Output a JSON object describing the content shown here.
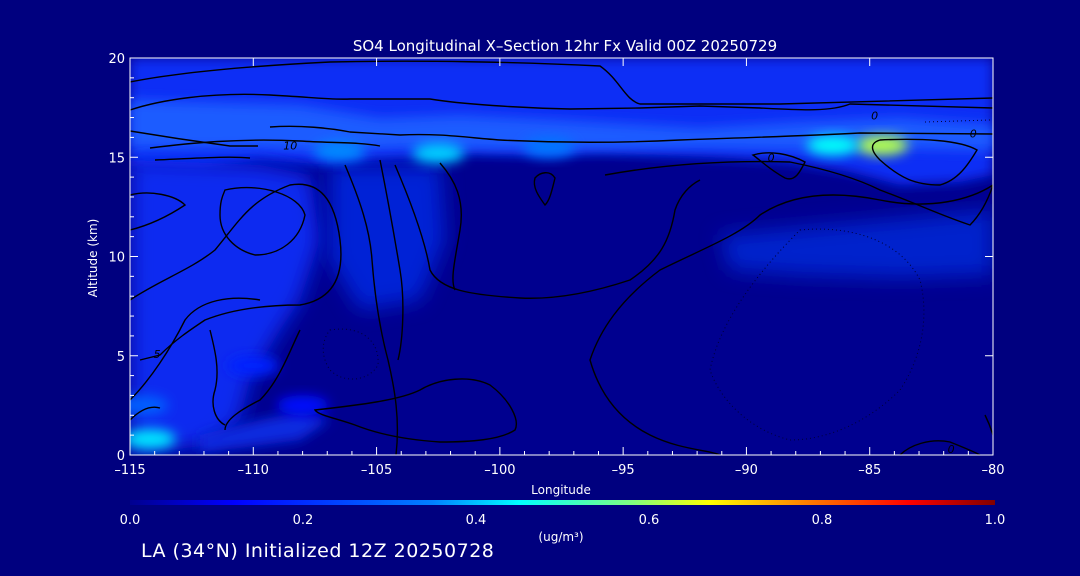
{
  "chart_data": {
    "type": "heatmap",
    "title": "SO4 Longitudinal X–Section 12hr  Fx Valid 00Z 20250729",
    "xlabel": "Longitude",
    "ylabel": "Altitude (km)",
    "xlim": [
      -115,
      -80
    ],
    "ylim": [
      0,
      20
    ],
    "x_ticks": [
      -115,
      -110,
      -105,
      -100,
      -95,
      -90,
      -85,
      -80
    ],
    "x_tick_labels": [
      "–115",
      "–110",
      "–105",
      "–100",
      "–95",
      "–90",
      "–85",
      "–80"
    ],
    "y_ticks": [
      0,
      5,
      10,
      15,
      20
    ],
    "y_tick_labels": [
      "0",
      "5",
      "10",
      "15",
      "20"
    ],
    "colorbar": {
      "label": "(ug/m³)",
      "min": 0.0,
      "max": 1.0,
      "ticks": [
        0.0,
        0.2,
        0.4,
        0.6,
        0.8,
        1.0
      ],
      "tick_labels": [
        "0.0",
        "0.2",
        "0.4",
        "0.6",
        "0.8",
        "1.0"
      ],
      "colors": [
        "#00008f",
        "#0000ff",
        "#0080ff",
        "#00ffff",
        "#80ff80",
        "#ffff00",
        "#ff8000",
        "#ff0000",
        "#800000"
      ]
    },
    "contour_labels": [
      {
        "text": "10",
        "lon": -108.5,
        "alt": 15.6
      },
      {
        "text": "0",
        "lon": -84.8,
        "alt": 17.1
      },
      {
        "text": "0",
        "lon": -80.8,
        "alt": 16.2
      },
      {
        "text": "0",
        "lon": -89.0,
        "alt": 15.0
      },
      {
        "text": "5",
        "lon": -113.9,
        "alt": 5.1
      },
      {
        "text": "0",
        "lon": -81.7,
        "alt": 0.3
      }
    ],
    "concentration_regions": [
      {
        "lon": -114.2,
        "alt": 0.8,
        "value": 0.35
      },
      {
        "lon": -114.5,
        "alt": 2.5,
        "value": 0.22
      },
      {
        "lon": -110.0,
        "alt": 4.5,
        "value": 0.16
      },
      {
        "lon": -108.0,
        "alt": 2.5,
        "value": 0.14
      },
      {
        "lon": -102.5,
        "alt": 15.2,
        "value": 0.33
      },
      {
        "lon": -106.5,
        "alt": 15.3,
        "value": 0.26
      },
      {
        "lon": -84.5,
        "alt": 15.6,
        "value": 0.55
      },
      {
        "lon": -86.5,
        "alt": 15.6,
        "value": 0.38
      },
      {
        "lon": -98.0,
        "alt": 15.5,
        "value": 0.24
      }
    ]
  },
  "footer": {
    "run_label": "LA (34°N) Initialized 12Z 20250728"
  }
}
